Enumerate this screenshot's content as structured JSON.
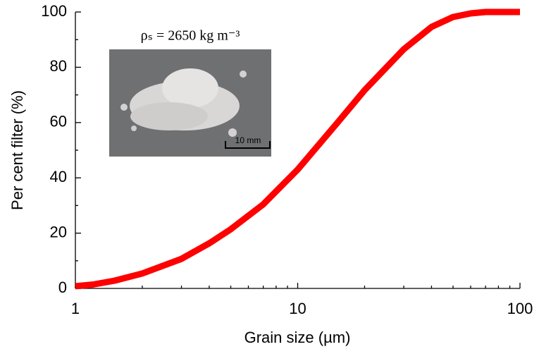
{
  "chart_data": {
    "type": "line",
    "x_label": "Grain size (µm)",
    "y_label": "Per cent filter (%)",
    "x": [
      1,
      1.2,
      1.5,
      2,
      3,
      4,
      5,
      7,
      10,
      15,
      20,
      30,
      40,
      50,
      60,
      70,
      100
    ],
    "series": [
      {
        "name": "Per cent filter",
        "color": "#ff0000",
        "values": [
          0.8,
          1.4,
          2.8,
          5.4,
          10.7,
          16.3,
          21.4,
          30.4,
          43,
          59.7,
          71.7,
          86.5,
          94.6,
          98.2,
          99.5,
          100,
          100
        ]
      }
    ],
    "xlim": [
      1,
      100
    ],
    "xticks": [
      1,
      10,
      100
    ],
    "xminorticks": [
      2,
      3,
      4,
      5,
      6,
      7,
      8,
      9,
      20,
      30,
      40,
      50,
      60,
      70,
      80,
      90
    ],
    "xscale": "log",
    "ylim": [
      0,
      100
    ],
    "yticks": [
      0,
      20,
      40,
      60,
      80,
      100
    ],
    "yminorticks": [
      10,
      30,
      50,
      70,
      90
    ],
    "inset_annotation": "ρₛ = 2650 kg m⁻³",
    "scale_bar_label": "10 mm"
  }
}
